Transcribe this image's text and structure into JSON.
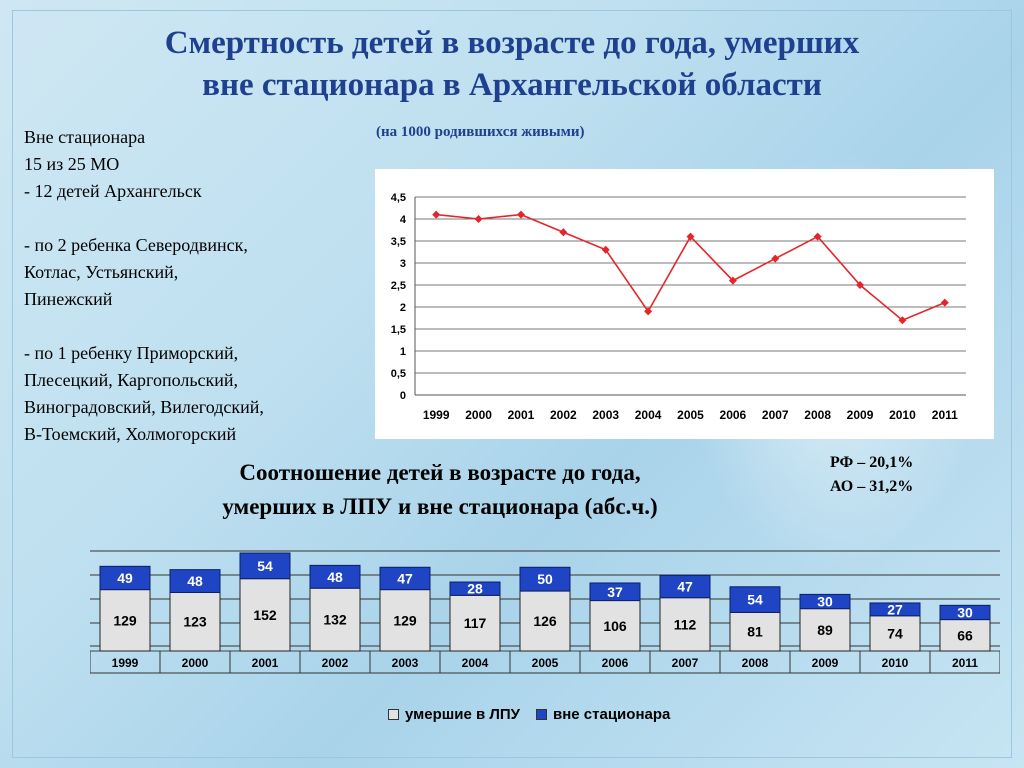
{
  "slide": {
    "title_line1": "Смертность детей в возрасте до года, умерших",
    "title_line2": "вне стационара в Архангельской области",
    "note": "(на 1000 родившихся живыми)",
    "left_text": [
      "Вне стационара",
      "15 из 25 МО",
      "- 12 детей Архангельск",
      "",
      "- по 2 ребенка Северодвинск,",
      "Котлас, Устьянский,",
      "Пинежский",
      "",
      "- по 1 ребенку Приморский,",
      "Плесецкий, Каргопольский,",
      "Виноградовский, Вилегодский,",
      "В-Тоемский, Холмогорский"
    ],
    "rate_rf": "РФ – 20,1%",
    "rate_ao": "АО – 31,2%",
    "bar_title_line1": "Соотношение детей в возрасте до года,",
    "bar_title_line2": "умерших в ЛПУ и вне стационара (абс.ч.)"
  },
  "colors": {
    "title": "#1f3f8f",
    "line": "#e3262b",
    "bar_gray": "#e2e2e2",
    "bar_blue": "#1f44c4"
  },
  "chart_data": [
    {
      "type": "line",
      "categories": [
        "1999",
        "2000",
        "2001",
        "2002",
        "2003",
        "2004",
        "2005",
        "2006",
        "2007",
        "2008",
        "2009",
        "2010",
        "2011"
      ],
      "series": [
        {
          "values": [
            4.1,
            4.0,
            4.1,
            3.7,
            3.3,
            1.9,
            3.6,
            2.6,
            3.1,
            3.6,
            2.5,
            1.7,
            2.1
          ]
        }
      ],
      "yticks": [
        "0",
        "0,5",
        "1",
        "1,5",
        "2",
        "2,5",
        "3",
        "3,5",
        "4",
        "4,5"
      ],
      "ylim": [
        0,
        4.5
      ],
      "grid": true
    },
    {
      "type": "bar",
      "stacked": true,
      "categories": [
        "1999",
        "2000",
        "2001",
        "2002",
        "2003",
        "2004",
        "2005",
        "2006",
        "2007",
        "2008",
        "2009",
        "2010",
        "2011"
      ],
      "series": [
        {
          "name": "умершие в ЛПУ",
          "values": [
            129,
            123,
            152,
            132,
            129,
            117,
            126,
            106,
            112,
            81,
            89,
            74,
            66
          ]
        },
        {
          "name": "вне стационара",
          "values": [
            49,
            48,
            54,
            48,
            47,
            28,
            50,
            37,
            47,
            54,
            30,
            27,
            30
          ]
        }
      ],
      "legend": "bottom",
      "grid": true
    }
  ]
}
